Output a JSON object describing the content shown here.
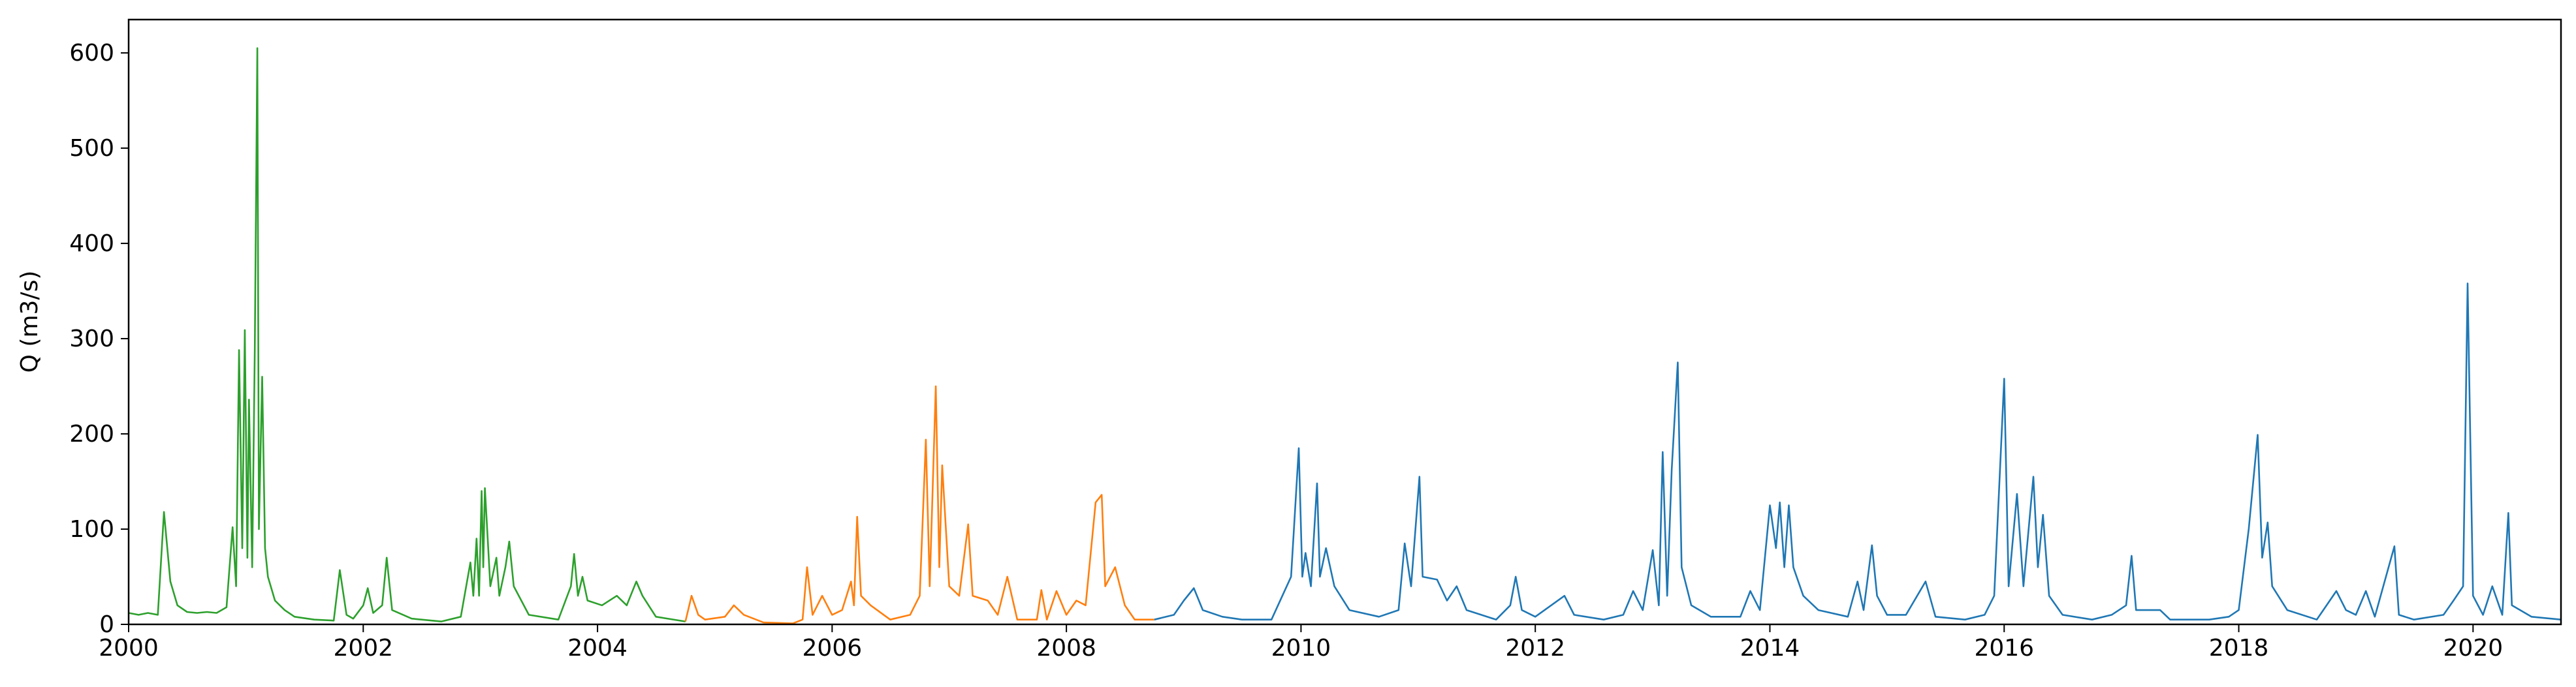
{
  "chart_data": {
    "type": "line",
    "title": "",
    "xlabel": "",
    "ylabel": "Q (m3/s)",
    "xlim": [
      "2000-01-01",
      "2020-10-01"
    ],
    "ylim": [
      0,
      635
    ],
    "grid": false,
    "legend": "none",
    "x_ticks": [
      "2000",
      "2002",
      "2004",
      "2006",
      "2008",
      "2010",
      "2012",
      "2014",
      "2016",
      "2018",
      "2020"
    ],
    "y_ticks": [
      "0",
      "100",
      "200",
      "300",
      "400",
      "500",
      "600"
    ],
    "series": [
      {
        "color": "#2ca02c",
        "points": [
          [
            "2000-01-01",
            12
          ],
          [
            "2000-02-01",
            10
          ],
          [
            "2000-03-01",
            12
          ],
          [
            "2000-04-01",
            10
          ],
          [
            "2000-04-20",
            118
          ],
          [
            "2000-05-10",
            45
          ],
          [
            "2000-06-01",
            20
          ],
          [
            "2000-07-01",
            13
          ],
          [
            "2000-08-01",
            12
          ],
          [
            "2000-09-01",
            13
          ],
          [
            "2000-10-01",
            12
          ],
          [
            "2000-11-01",
            18
          ],
          [
            "2000-11-20",
            102
          ],
          [
            "2000-12-01",
            40
          ],
          [
            "2000-12-10",
            288
          ],
          [
            "2000-12-20",
            80
          ],
          [
            "2000-12-28",
            309
          ],
          [
            "2001-01-05",
            70
          ],
          [
            "2001-01-10",
            236
          ],
          [
            "2001-01-20",
            60
          ],
          [
            "2001-01-28",
            289
          ],
          [
            "2001-02-05",
            605
          ],
          [
            "2001-02-10",
            100
          ],
          [
            "2001-02-20",
            260
          ],
          [
            "2001-03-01",
            80
          ],
          [
            "2001-03-10",
            50
          ],
          [
            "2001-04-01",
            25
          ],
          [
            "2001-05-01",
            15
          ],
          [
            "2001-06-01",
            8
          ],
          [
            "2001-08-01",
            5
          ],
          [
            "2001-10-01",
            4
          ],
          [
            "2001-10-20",
            57
          ],
          [
            "2001-11-10",
            10
          ],
          [
            "2001-12-01",
            6
          ],
          [
            "2002-01-01",
            20
          ],
          [
            "2002-01-15",
            38
          ],
          [
            "2002-02-01",
            12
          ],
          [
            "2002-03-01",
            20
          ],
          [
            "2002-03-15",
            70
          ],
          [
            "2002-04-01",
            15
          ],
          [
            "2002-06-01",
            6
          ],
          [
            "2002-09-01",
            3
          ],
          [
            "2002-11-01",
            8
          ],
          [
            "2002-12-01",
            65
          ],
          [
            "2002-12-10",
            30
          ],
          [
            "2002-12-20",
            90
          ],
          [
            "2002-12-28",
            30
          ],
          [
            "2003-01-05",
            140
          ],
          [
            "2003-01-10",
            60
          ],
          [
            "2003-01-15",
            143
          ],
          [
            "2003-02-01",
            40
          ],
          [
            "2003-02-20",
            70
          ],
          [
            "2003-03-01",
            30
          ],
          [
            "2003-03-20",
            60
          ],
          [
            "2003-04-01",
            87
          ],
          [
            "2003-04-15",
            40
          ],
          [
            "2003-06-01",
            10
          ],
          [
            "2003-09-01",
            5
          ],
          [
            "2003-10-10",
            40
          ],
          [
            "2003-10-20",
            74
          ],
          [
            "2003-11-01",
            30
          ],
          [
            "2003-11-15",
            50
          ],
          [
            "2003-12-01",
            25
          ],
          [
            "2004-01-15",
            20
          ],
          [
            "2004-03-01",
            30
          ],
          [
            "2004-04-01",
            20
          ],
          [
            "2004-05-01",
            45
          ],
          [
            "2004-05-20",
            30
          ],
          [
            "2004-07-01",
            8
          ],
          [
            "2004-10-01",
            3
          ]
        ]
      },
      {
        "color": "#ff7f0e",
        "points": [
          [
            "2004-10-01",
            3
          ],
          [
            "2004-10-20",
            30
          ],
          [
            "2004-11-10",
            10
          ],
          [
            "2004-12-01",
            5
          ],
          [
            "2005-02-01",
            8
          ],
          [
            "2005-03-01",
            20
          ],
          [
            "2005-04-01",
            10
          ],
          [
            "2005-06-01",
            2
          ],
          [
            "2005-09-01",
            1
          ],
          [
            "2005-10-01",
            5
          ],
          [
            "2005-10-15",
            60
          ],
          [
            "2005-11-01",
            10
          ],
          [
            "2005-12-01",
            30
          ],
          [
            "2006-01-01",
            10
          ],
          [
            "2006-02-01",
            15
          ],
          [
            "2006-03-01",
            45
          ],
          [
            "2006-03-10",
            20
          ],
          [
            "2006-03-20",
            113
          ],
          [
            "2006-04-01",
            30
          ],
          [
            "2006-05-01",
            20
          ],
          [
            "2006-07-01",
            5
          ],
          [
            "2006-09-01",
            10
          ],
          [
            "2006-10-01",
            30
          ],
          [
            "2006-10-20",
            194
          ],
          [
            "2006-11-01",
            40
          ],
          [
            "2006-11-20",
            250
          ],
          [
            "2006-12-01",
            60
          ],
          [
            "2006-12-10",
            167
          ],
          [
            "2007-01-01",
            40
          ],
          [
            "2007-02-01",
            30
          ],
          [
            "2007-03-01",
            105
          ],
          [
            "2007-03-15",
            30
          ],
          [
            "2007-05-01",
            25
          ],
          [
            "2007-06-01",
            10
          ],
          [
            "2007-07-01",
            50
          ],
          [
            "2007-08-01",
            5
          ],
          [
            "2007-10-01",
            5
          ],
          [
            "2007-10-15",
            36
          ],
          [
            "2007-11-01",
            5
          ],
          [
            "2007-12-01",
            35
          ],
          [
            "2008-01-01",
            10
          ],
          [
            "2008-02-01",
            25
          ],
          [
            "2008-03-01",
            20
          ],
          [
            "2008-04-01",
            128
          ],
          [
            "2008-04-20",
            136
          ],
          [
            "2008-05-01",
            40
          ],
          [
            "2008-06-01",
            60
          ],
          [
            "2008-07-01",
            20
          ],
          [
            "2008-08-01",
            5
          ],
          [
            "2008-10-01",
            5
          ]
        ]
      },
      {
        "color": "#1f77b4",
        "points": [
          [
            "2008-10-01",
            5
          ],
          [
            "2008-12-01",
            10
          ],
          [
            "2009-01-01",
            25
          ],
          [
            "2009-02-01",
            38
          ],
          [
            "2009-03-01",
            15
          ],
          [
            "2009-05-01",
            8
          ],
          [
            "2009-07-01",
            5
          ],
          [
            "2009-10-01",
            5
          ],
          [
            "2009-12-01",
            50
          ],
          [
            "2009-12-25",
            185
          ],
          [
            "2010-01-05",
            50
          ],
          [
            "2010-01-15",
            75
          ],
          [
            "2010-02-01",
            40
          ],
          [
            "2010-02-20",
            148
          ],
          [
            "2010-03-01",
            50
          ],
          [
            "2010-03-20",
            80
          ],
          [
            "2010-04-15",
            40
          ],
          [
            "2010-06-01",
            15
          ],
          [
            "2010-09-01",
            8
          ],
          [
            "2010-11-01",
            15
          ],
          [
            "2010-11-20",
            85
          ],
          [
            "2010-12-10",
            40
          ],
          [
            "2011-01-05",
            155
          ],
          [
            "2011-01-15",
            50
          ],
          [
            "2011-03-01",
            47
          ],
          [
            "2011-04-01",
            25
          ],
          [
            "2011-05-01",
            40
          ],
          [
            "2011-06-01",
            15
          ],
          [
            "2011-09-01",
            5
          ],
          [
            "2011-10-15",
            20
          ],
          [
            "2011-11-01",
            50
          ],
          [
            "2011-11-20",
            15
          ],
          [
            "2012-01-01",
            8
          ],
          [
            "2012-04-01",
            30
          ],
          [
            "2012-05-01",
            10
          ],
          [
            "2012-08-01",
            5
          ],
          [
            "2012-10-01",
            10
          ],
          [
            "2012-11-01",
            35
          ],
          [
            "2012-12-01",
            15
          ],
          [
            "2013-01-01",
            78
          ],
          [
            "2013-01-20",
            20
          ],
          [
            "2013-02-01",
            181
          ],
          [
            "2013-02-15",
            30
          ],
          [
            "2013-03-01",
            162
          ],
          [
            "2013-03-20",
            275
          ],
          [
            "2013-04-01",
            60
          ],
          [
            "2013-05-01",
            20
          ],
          [
            "2013-07-01",
            8
          ],
          [
            "2013-10-01",
            8
          ],
          [
            "2013-11-01",
            35
          ],
          [
            "2013-12-01",
            15
          ],
          [
            "2014-01-01",
            125
          ],
          [
            "2014-01-20",
            80
          ],
          [
            "2014-02-01",
            128
          ],
          [
            "2014-02-15",
            60
          ],
          [
            "2014-03-01",
            125
          ],
          [
            "2014-03-15",
            60
          ],
          [
            "2014-04-15",
            30
          ],
          [
            "2014-06-01",
            15
          ],
          [
            "2014-09-01",
            8
          ],
          [
            "2014-10-01",
            45
          ],
          [
            "2014-10-20",
            15
          ],
          [
            "2014-11-15",
            83
          ],
          [
            "2014-12-01",
            30
          ],
          [
            "2015-01-01",
            10
          ],
          [
            "2015-03-01",
            10
          ],
          [
            "2015-05-01",
            45
          ],
          [
            "2015-06-01",
            8
          ],
          [
            "2015-09-01",
            5
          ],
          [
            "2015-11-01",
            10
          ],
          [
            "2015-12-01",
            30
          ],
          [
            "2016-01-01",
            258
          ],
          [
            "2016-01-15",
            40
          ],
          [
            "2016-02-10",
            137
          ],
          [
            "2016-03-01",
            40
          ],
          [
            "2016-04-01",
            155
          ],
          [
            "2016-04-15",
            60
          ],
          [
            "2016-05-01",
            115
          ],
          [
            "2016-05-20",
            30
          ],
          [
            "2016-07-01",
            10
          ],
          [
            "2016-10-01",
            5
          ],
          [
            "2016-12-01",
            10
          ],
          [
            "2017-01-15",
            20
          ],
          [
            "2017-02-01",
            72
          ],
          [
            "2017-02-15",
            15
          ],
          [
            "2017-05-01",
            15
          ],
          [
            "2017-06-01",
            5
          ],
          [
            "2017-10-01",
            5
          ],
          [
            "2017-12-01",
            8
          ],
          [
            "2018-01-01",
            15
          ],
          [
            "2018-02-01",
            100
          ],
          [
            "2018-03-01",
            199
          ],
          [
            "2018-03-15",
            70
          ],
          [
            "2018-04-01",
            107
          ],
          [
            "2018-04-15",
            40
          ],
          [
            "2018-06-01",
            15
          ],
          [
            "2018-09-01",
            5
          ],
          [
            "2018-11-01",
            35
          ],
          [
            "2018-12-01",
            15
          ],
          [
            "2019-01-01",
            10
          ],
          [
            "2019-02-01",
            35
          ],
          [
            "2019-03-01",
            8
          ],
          [
            "2019-05-01",
            82
          ],
          [
            "2019-05-15",
            10
          ],
          [
            "2019-07-01",
            5
          ],
          [
            "2019-10-01",
            10
          ],
          [
            "2019-11-01",
            25
          ],
          [
            "2019-12-01",
            40
          ],
          [
            "2019-12-15",
            358
          ],
          [
            "2020-01-01",
            30
          ],
          [
            "2020-02-01",
            10
          ],
          [
            "2020-03-01",
            40
          ],
          [
            "2020-04-01",
            10
          ],
          [
            "2020-04-20",
            117
          ],
          [
            "2020-05-01",
            20
          ],
          [
            "2020-07-01",
            8
          ],
          [
            "2020-10-01",
            5
          ]
        ]
      }
    ]
  }
}
